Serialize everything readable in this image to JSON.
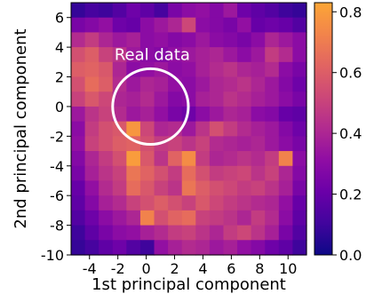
{
  "chart_data": {
    "type": "heatmap",
    "xlabel": "1st principal component",
    "ylabel": "2nd principal component",
    "xlim": [
      -5.3,
      11.3
    ],
    "ylim": [
      -10,
      7
    ],
    "xticks": [
      -4,
      -2,
      0,
      2,
      4,
      6,
      8,
      10
    ],
    "yticks": [
      -10,
      -8,
      -6,
      -4,
      -2,
      0,
      2,
      4,
      6
    ],
    "x_bin_count": 17,
    "y_bin_count": 17,
    "colorbar": {
      "colormap": "plasma",
      "range": [
        0,
        0.83
      ],
      "ticks": [
        0.0,
        0.2,
        0.4,
        0.6,
        0.8
      ]
    },
    "values": [
      [
        0.08,
        0.12,
        0.1,
        0.15,
        0.22,
        0.18,
        0.12,
        0.25,
        0.3,
        0.32,
        0.28,
        0.35,
        0.22,
        0.18,
        0.15,
        0.1,
        0.08
      ],
      [
        0.25,
        0.28,
        0.32,
        0.22,
        0.2,
        0.3,
        0.35,
        0.4,
        0.52,
        0.3,
        0.28,
        0.25,
        0.32,
        0.2,
        0.22,
        0.2,
        0.15
      ],
      [
        0.42,
        0.48,
        0.4,
        0.35,
        0.38,
        0.3,
        0.32,
        0.28,
        0.3,
        0.35,
        0.3,
        0.28,
        0.25,
        0.3,
        0.4,
        0.35,
        0.3
      ],
      [
        0.55,
        0.6,
        0.5,
        0.45,
        0.35,
        0.3,
        0.28,
        0.32,
        0.35,
        0.38,
        0.4,
        0.35,
        0.3,
        0.35,
        0.48,
        0.42,
        0.3
      ],
      [
        0.6,
        0.62,
        0.58,
        0.4,
        0.3,
        0.32,
        0.35,
        0.3,
        0.32,
        0.38,
        0.42,
        0.45,
        0.4,
        0.38,
        0.42,
        0.3,
        0.25
      ],
      [
        0.55,
        0.65,
        0.6,
        0.42,
        0.35,
        0.4,
        0.38,
        0.32,
        0.3,
        0.35,
        0.4,
        0.42,
        0.45,
        0.4,
        0.35,
        0.28,
        0.22
      ],
      [
        0.5,
        0.58,
        0.52,
        0.4,
        0.38,
        0.42,
        0.35,
        0.28,
        0.3,
        0.38,
        0.4,
        0.45,
        0.42,
        0.38,
        0.35,
        0.3,
        0.25
      ],
      [
        0.35,
        0.45,
        0.5,
        0.42,
        0.35,
        0.38,
        0.32,
        0.25,
        0.22,
        0.3,
        0.35,
        0.4,
        0.38,
        0.3,
        0.28,
        0.2,
        0.18
      ],
      [
        0.3,
        0.48,
        0.55,
        0.58,
        0.78,
        0.52,
        0.4,
        0.42,
        0.35,
        0.45,
        0.55,
        0.48,
        0.42,
        0.38,
        0.35,
        0.28,
        0.22
      ],
      [
        0.32,
        0.5,
        0.55,
        0.6,
        0.62,
        0.55,
        0.48,
        0.5,
        0.45,
        0.5,
        0.42,
        0.4,
        0.38,
        0.4,
        0.35,
        0.3,
        0.25
      ],
      [
        0.28,
        0.4,
        0.48,
        0.55,
        0.8,
        0.58,
        0.45,
        0.62,
        0.75,
        0.48,
        0.4,
        0.42,
        0.45,
        0.42,
        0.48,
        0.72,
        0.3
      ],
      [
        0.25,
        0.38,
        0.45,
        0.5,
        0.68,
        0.62,
        0.55,
        0.48,
        0.65,
        0.55,
        0.48,
        0.5,
        0.52,
        0.45,
        0.5,
        0.4,
        0.28
      ],
      [
        0.2,
        0.32,
        0.42,
        0.48,
        0.65,
        0.58,
        0.5,
        0.45,
        0.68,
        0.6,
        0.55,
        0.52,
        0.48,
        0.5,
        0.45,
        0.38,
        0.25
      ],
      [
        0.18,
        0.28,
        0.38,
        0.42,
        0.5,
        0.55,
        0.6,
        0.55,
        0.5,
        0.58,
        0.52,
        0.48,
        0.45,
        0.42,
        0.4,
        0.32,
        0.2
      ],
      [
        0.15,
        0.22,
        0.3,
        0.35,
        0.4,
        0.72,
        0.55,
        0.62,
        0.65,
        0.5,
        0.48,
        0.45,
        0.4,
        0.48,
        0.42,
        0.3,
        0.18
      ],
      [
        0.1,
        0.18,
        0.25,
        0.3,
        0.32,
        0.38,
        0.42,
        0.48,
        0.5,
        0.45,
        0.4,
        0.48,
        0.52,
        0.45,
        0.38,
        0.25,
        0.15
      ],
      [
        0.08,
        0.12,
        0.18,
        0.22,
        0.15,
        0.1,
        0.32,
        0.38,
        0.42,
        0.4,
        0.35,
        0.38,
        0.32,
        0.28,
        0.22,
        0.18,
        0.1
      ]
    ],
    "annotations": [
      {
        "text": "Real data",
        "circle_center": [
          0.3,
          0
        ],
        "circle_radius": 1.7
      }
    ]
  }
}
